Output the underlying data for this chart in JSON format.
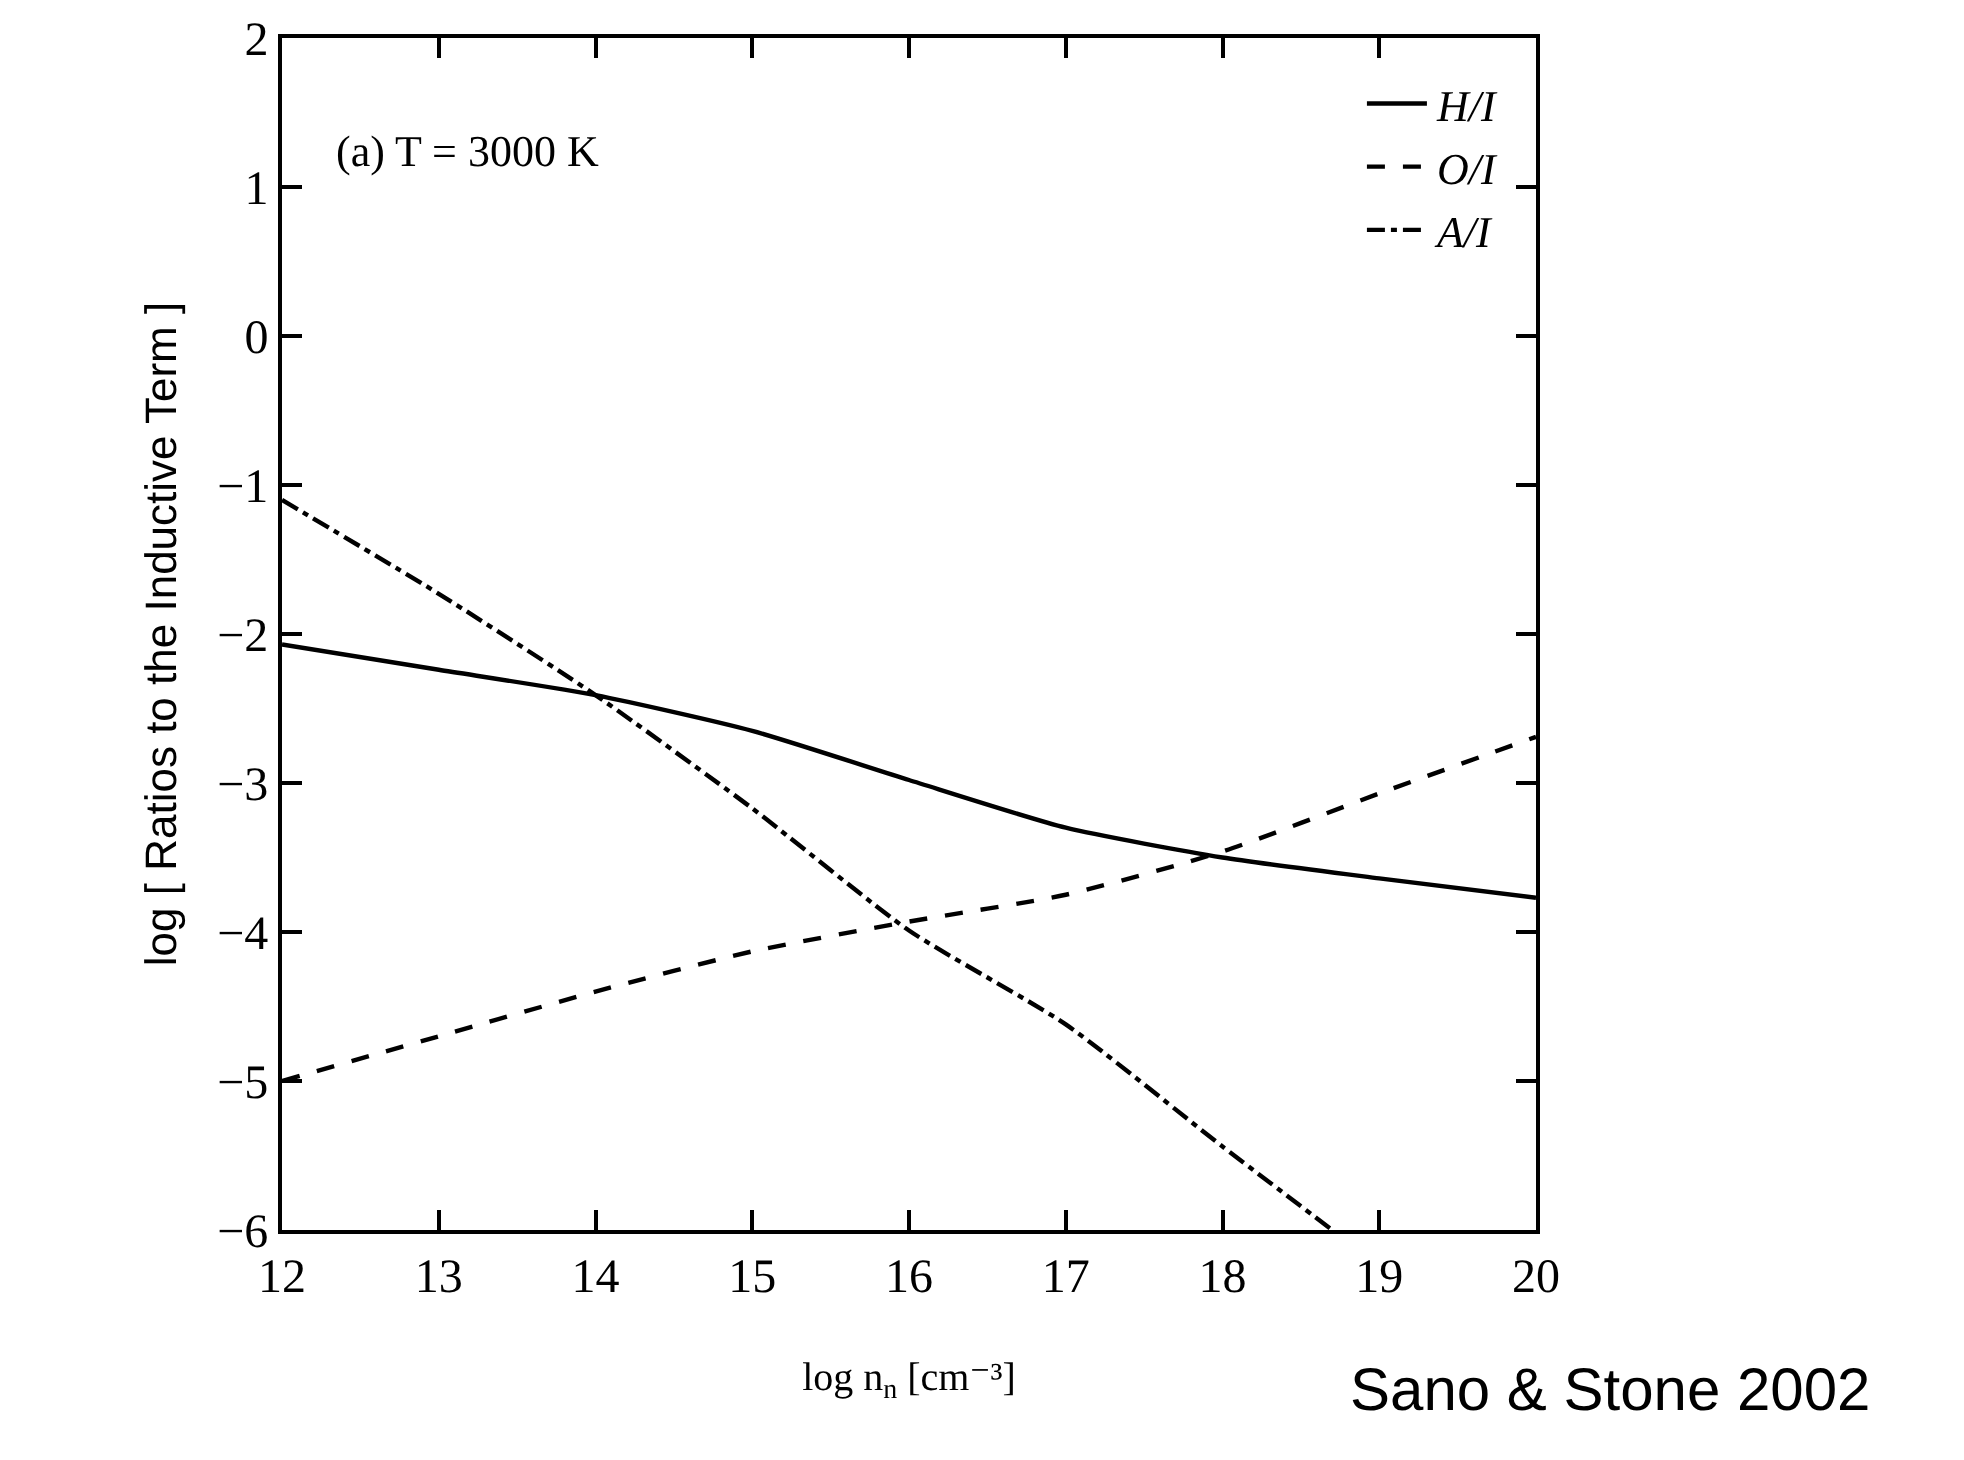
{
  "chart_data": {
    "type": "line",
    "xlabel": "log n$_{n}$ [cm⁻³]",
    "ylabel": "log [ Ratios to the Inductive Term ]",
    "x": [
      12,
      13,
      14,
      15,
      16,
      17,
      18,
      19,
      20
    ],
    "series": [
      {
        "name": "H/I",
        "color": "#000000",
        "line_style": "solid",
        "values": [
          -2.07,
          -2.24,
          -2.41,
          -2.65,
          -2.98,
          -3.3,
          -3.5,
          -3.64,
          -3.77
        ]
      },
      {
        "name": "O/I",
        "color": "#000000",
        "line_style": "dashed",
        "values": [
          -5.0,
          -4.7,
          -4.4,
          -4.13,
          -3.93,
          -3.75,
          -3.46,
          -3.07,
          -2.69
        ]
      },
      {
        "name": "A/I",
        "color": "#000000",
        "line_style": "dashdot",
        "x": [
          12,
          13,
          14,
          15,
          16,
          17,
          18,
          18.7
        ],
        "values": [
          -1.1,
          -1.73,
          -2.41,
          -3.17,
          -3.99,
          -4.62,
          -5.44,
          -6.0
        ]
      }
    ],
    "xlim": [
      12,
      20
    ],
    "xticks": [
      12,
      13,
      14,
      15,
      16,
      17,
      18,
      19,
      20
    ],
    "ylim": [
      -6,
      2
    ],
    "yticks": [
      -6,
      -5,
      -4,
      -3,
      -2,
      -1,
      0,
      1,
      2
    ],
    "grid": false,
    "legend": "top right",
    "marker": "none",
    "annotations": [
      "(a) T = 3000 K",
      "Sano & Stone 2002"
    ]
  }
}
